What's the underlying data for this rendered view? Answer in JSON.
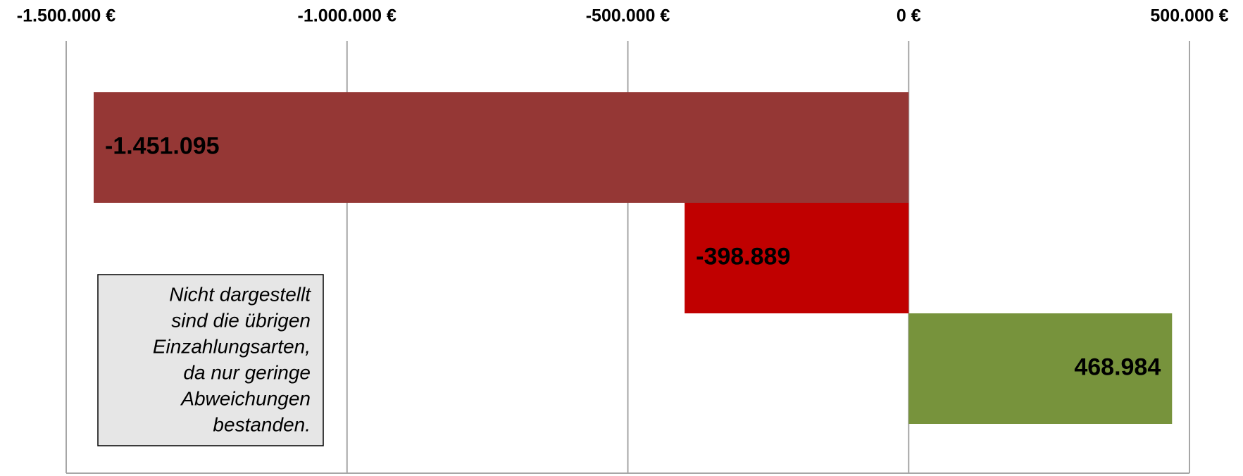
{
  "chart_data": {
    "type": "hbar",
    "categories": [
      null,
      null,
      null
    ],
    "values": [
      -1451095,
      -398889,
      468984
    ],
    "value_labels": [
      "-1.451.095",
      "-398.889",
      "468.984"
    ],
    "colors": [
      "#953735",
      "#c00000",
      "#77933c"
    ],
    "xlim": [
      -1500000,
      500000
    ],
    "xticks": [
      {
        "value": -1500000,
        "label": "-1.500.000 €"
      },
      {
        "value": -1000000,
        "label": "-1.000.000 €"
      },
      {
        "value": -500000,
        "label": "-500.000 €"
      },
      {
        "value": 0,
        "label": "0 €"
      },
      {
        "value": 500000,
        "label": "500.000 €"
      }
    ],
    "grid": true,
    "annotation": [
      "Nicht dargestellt",
      "sind die übrigen",
      "Einzahlungsarten,",
      "da nur geringe",
      "Abweichungen",
      "bestanden."
    ]
  }
}
